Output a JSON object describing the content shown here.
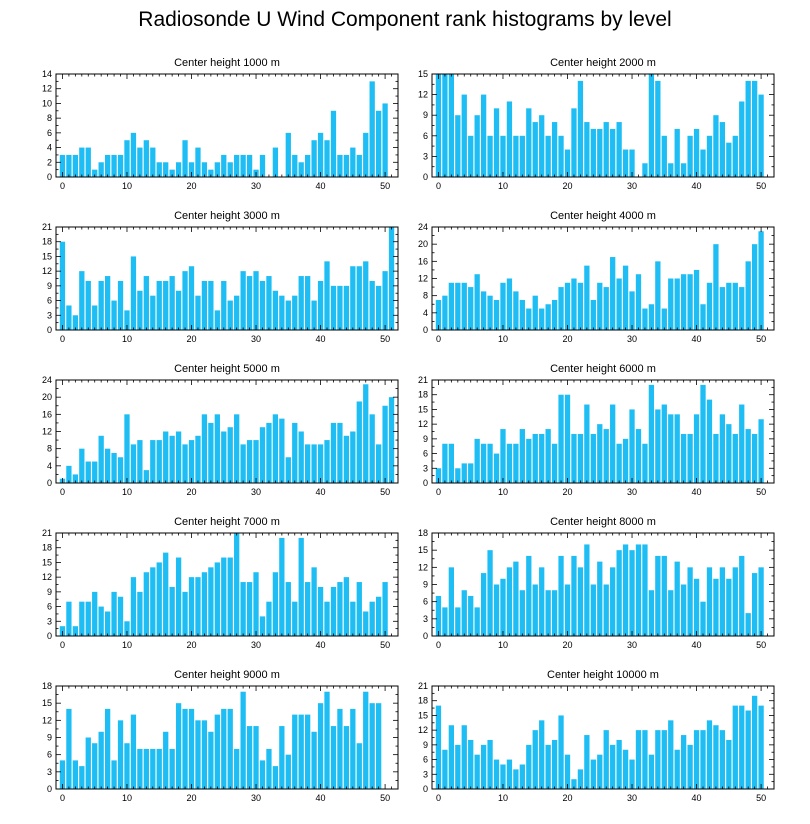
{
  "title": "Radiosonde U Wind Component rank histograms by level",
  "colors": {
    "bar": "#1EBEF5",
    "axis": "#000000",
    "background": "#ffffff"
  },
  "chart_data": [
    {
      "type": "bar",
      "title": "Center height 1000 m",
      "xlim": [
        -1,
        52
      ],
      "ylim": [
        0,
        14
      ],
      "xticks": [
        0,
        10,
        20,
        30,
        40,
        50
      ],
      "yticks": [
        0,
        2,
        4,
        6,
        8,
        10,
        12,
        14
      ],
      "x": [
        0,
        1,
        2,
        3,
        4,
        5,
        6,
        7,
        8,
        9,
        10,
        11,
        12,
        13,
        14,
        15,
        16,
        17,
        18,
        19,
        20,
        21,
        22,
        23,
        24,
        25,
        26,
        27,
        28,
        29,
        30,
        31,
        32,
        33,
        34,
        35,
        36,
        37,
        38,
        39,
        40,
        41,
        42,
        43,
        44,
        45,
        46,
        47,
        48,
        49,
        50,
        51
      ],
      "values": [
        3,
        3,
        3,
        4,
        4,
        1,
        2,
        3,
        3,
        3,
        5,
        6,
        4,
        5,
        4,
        2,
        2,
        1,
        2,
        5,
        2,
        4,
        2,
        1,
        2,
        3,
        2,
        3,
        3,
        3,
        1,
        3,
        0,
        4,
        0,
        6,
        3,
        2,
        3,
        5,
        6,
        5,
        9,
        3,
        3,
        4,
        3,
        6,
        13,
        9,
        10,
        0
      ]
    },
    {
      "type": "bar",
      "title": "Center height 2000 m",
      "xlim": [
        -1,
        52
      ],
      "ylim": [
        0,
        15
      ],
      "xticks": [
        0,
        10,
        20,
        30,
        40,
        50
      ],
      "yticks": [
        0,
        3,
        6,
        9,
        12,
        15
      ],
      "x": [
        0,
        1,
        2,
        3,
        4,
        5,
        6,
        7,
        8,
        9,
        10,
        11,
        12,
        13,
        14,
        15,
        16,
        17,
        18,
        19,
        20,
        21,
        22,
        23,
        24,
        25,
        26,
        27,
        28,
        29,
        30,
        31,
        32,
        33,
        34,
        35,
        36,
        37,
        38,
        39,
        40,
        41,
        42,
        43,
        44,
        45,
        46,
        47,
        48,
        49,
        50,
        51
      ],
      "values": [
        15,
        15,
        15,
        9,
        12,
        6,
        9,
        12,
        6,
        10,
        6,
        11,
        6,
        6,
        10,
        8,
        9,
        6,
        8,
        6,
        4,
        10,
        14,
        8,
        7,
        7,
        8,
        7,
        8,
        4,
        4,
        0,
        2,
        15,
        14,
        6,
        2,
        7,
        2,
        6,
        7,
        4,
        6,
        9,
        8,
        5,
        6,
        11,
        14,
        14,
        12,
        0
      ]
    },
    {
      "type": "bar",
      "title": "Center height 3000 m",
      "xlim": [
        -1,
        52
      ],
      "ylim": [
        0,
        21
      ],
      "xticks": [
        0,
        10,
        20,
        30,
        40,
        50
      ],
      "yticks": [
        0,
        3,
        6,
        9,
        12,
        15,
        18,
        21
      ],
      "x": [
        0,
        1,
        2,
        3,
        4,
        5,
        6,
        7,
        8,
        9,
        10,
        11,
        12,
        13,
        14,
        15,
        16,
        17,
        18,
        19,
        20,
        21,
        22,
        23,
        24,
        25,
        26,
        27,
        28,
        29,
        30,
        31,
        32,
        33,
        34,
        35,
        36,
        37,
        38,
        39,
        40,
        41,
        42,
        43,
        44,
        45,
        46,
        47,
        48,
        49,
        50,
        51
      ],
      "values": [
        18,
        5,
        3,
        12,
        10,
        5,
        10,
        11,
        6,
        10,
        4,
        15,
        8,
        11,
        7,
        10,
        10,
        11,
        8,
        12,
        13,
        7,
        10,
        10,
        4,
        10,
        6,
        7,
        12,
        11,
        12,
        10,
        11,
        8,
        7,
        6,
        7,
        11,
        11,
        6,
        10,
        14,
        9,
        9,
        9,
        13,
        13,
        14,
        10,
        9,
        12,
        21
      ]
    },
    {
      "type": "bar",
      "title": "Center height 4000 m",
      "xlim": [
        -1,
        52
      ],
      "ylim": [
        0,
        24
      ],
      "xticks": [
        0,
        10,
        20,
        30,
        40,
        50
      ],
      "yticks": [
        0,
        4,
        8,
        12,
        16,
        20,
        24
      ],
      "x": [
        0,
        1,
        2,
        3,
        4,
        5,
        6,
        7,
        8,
        9,
        10,
        11,
        12,
        13,
        14,
        15,
        16,
        17,
        18,
        19,
        20,
        21,
        22,
        23,
        24,
        25,
        26,
        27,
        28,
        29,
        30,
        31,
        32,
        33,
        34,
        35,
        36,
        37,
        38,
        39,
        40,
        41,
        42,
        43,
        44,
        45,
        46,
        47,
        48,
        49,
        50,
        51
      ],
      "values": [
        7,
        8,
        11,
        11,
        11,
        10,
        13,
        9,
        8,
        7,
        11,
        12,
        9,
        7,
        5,
        8,
        5,
        6,
        7,
        10,
        11,
        12,
        11,
        15,
        7,
        11,
        10,
        17,
        12,
        15,
        9,
        13,
        5,
        6,
        16,
        5,
        12,
        12,
        13,
        13,
        14,
        6,
        11,
        20,
        10,
        11,
        11,
        10,
        16,
        20,
        23,
        0
      ]
    },
    {
      "type": "bar",
      "title": "Center height 5000 m",
      "xlim": [
        -1,
        52
      ],
      "ylim": [
        0,
        24
      ],
      "xticks": [
        0,
        10,
        20,
        30,
        40,
        50
      ],
      "yticks": [
        0,
        4,
        8,
        12,
        16,
        20,
        24
      ],
      "x": [
        0,
        1,
        2,
        3,
        4,
        5,
        6,
        7,
        8,
        9,
        10,
        11,
        12,
        13,
        14,
        15,
        16,
        17,
        18,
        19,
        20,
        21,
        22,
        23,
        24,
        25,
        26,
        27,
        28,
        29,
        30,
        31,
        32,
        33,
        34,
        35,
        36,
        37,
        38,
        39,
        40,
        41,
        42,
        43,
        44,
        45,
        46,
        47,
        48,
        49,
        50,
        51
      ],
      "values": [
        1,
        4,
        2,
        8,
        5,
        5,
        11,
        8,
        7,
        6,
        16,
        9,
        10,
        3,
        10,
        10,
        12,
        11,
        12,
        9,
        10,
        11,
        16,
        14,
        16,
        12,
        13,
        16,
        9,
        10,
        10,
        13,
        14,
        16,
        15,
        6,
        14,
        12,
        9,
        9,
        9,
        10,
        14,
        14,
        11,
        12,
        19,
        23,
        16,
        9,
        18,
        20
      ]
    },
    {
      "type": "bar",
      "title": "Center height 6000 m",
      "xlim": [
        -1,
        52
      ],
      "ylim": [
        0,
        21
      ],
      "xticks": [
        0,
        10,
        20,
        30,
        40,
        50
      ],
      "yticks": [
        0,
        3,
        6,
        9,
        12,
        15,
        18,
        21
      ],
      "x": [
        0,
        1,
        2,
        3,
        4,
        5,
        6,
        7,
        8,
        9,
        10,
        11,
        12,
        13,
        14,
        15,
        16,
        17,
        18,
        19,
        20,
        21,
        22,
        23,
        24,
        25,
        26,
        27,
        28,
        29,
        30,
        31,
        32,
        33,
        34,
        35,
        36,
        37,
        38,
        39,
        40,
        41,
        42,
        43,
        44,
        45,
        46,
        47,
        48,
        49,
        50,
        51
      ],
      "values": [
        3,
        8,
        8,
        3,
        4,
        4,
        9,
        8,
        8,
        6,
        11,
        8,
        8,
        11,
        9,
        10,
        10,
        11,
        8,
        18,
        18,
        10,
        10,
        16,
        10,
        12,
        11,
        16,
        8,
        9,
        15,
        11,
        8,
        20,
        15,
        16,
        14,
        14,
        10,
        10,
        14,
        20,
        17,
        10,
        14,
        12,
        10,
        16,
        11,
        10,
        13,
        0
      ]
    },
    {
      "type": "bar",
      "title": "Center height 7000 m",
      "xlim": [
        -1,
        52
      ],
      "ylim": [
        0,
        21
      ],
      "xticks": [
        0,
        10,
        20,
        30,
        40,
        50
      ],
      "yticks": [
        0,
        3,
        6,
        9,
        12,
        15,
        18,
        21
      ],
      "x": [
        0,
        1,
        2,
        3,
        4,
        5,
        6,
        7,
        8,
        9,
        10,
        11,
        12,
        13,
        14,
        15,
        16,
        17,
        18,
        19,
        20,
        21,
        22,
        23,
        24,
        25,
        26,
        27,
        28,
        29,
        30,
        31,
        32,
        33,
        34,
        35,
        36,
        37,
        38,
        39,
        40,
        41,
        42,
        43,
        44,
        45,
        46,
        47,
        48,
        49,
        50,
        51
      ],
      "values": [
        2,
        7,
        2,
        7,
        7,
        9,
        6,
        5,
        9,
        8,
        3,
        12,
        9,
        13,
        14,
        15,
        17,
        10,
        16,
        9,
        12,
        12,
        13,
        14,
        15,
        16,
        16,
        21,
        11,
        11,
        13,
        4,
        7,
        13,
        20,
        11,
        7,
        20,
        11,
        14,
        10,
        7,
        10,
        11,
        12,
        7,
        11,
        5,
        7,
        8,
        11,
        0
      ]
    },
    {
      "type": "bar",
      "title": "Center height 8000 m",
      "xlim": [
        -1,
        52
      ],
      "ylim": [
        0,
        18
      ],
      "xticks": [
        0,
        10,
        20,
        30,
        40,
        50
      ],
      "yticks": [
        0,
        3,
        6,
        9,
        12,
        15,
        18
      ],
      "x": [
        0,
        1,
        2,
        3,
        4,
        5,
        6,
        7,
        8,
        9,
        10,
        11,
        12,
        13,
        14,
        15,
        16,
        17,
        18,
        19,
        20,
        21,
        22,
        23,
        24,
        25,
        26,
        27,
        28,
        29,
        30,
        31,
        32,
        33,
        34,
        35,
        36,
        37,
        38,
        39,
        40,
        41,
        42,
        43,
        44,
        45,
        46,
        47,
        48,
        49,
        50,
        51
      ],
      "values": [
        7,
        5,
        12,
        5,
        8,
        7,
        5,
        11,
        15,
        9,
        10,
        12,
        13,
        8,
        14,
        9,
        12,
        8,
        8,
        14,
        9,
        14,
        12,
        16,
        9,
        13,
        9,
        12,
        15,
        16,
        15,
        16,
        16,
        8,
        14,
        14,
        8,
        13,
        9,
        12,
        10,
        6,
        12,
        10,
        12,
        10,
        12,
        14,
        4,
        11,
        12,
        0
      ]
    },
    {
      "type": "bar",
      "title": "Center height 9000 m",
      "xlim": [
        -1,
        52
      ],
      "ylim": [
        0,
        18
      ],
      "xticks": [
        0,
        10,
        20,
        30,
        40,
        50
      ],
      "yticks": [
        0,
        3,
        6,
        9,
        12,
        15,
        18
      ],
      "x": [
        0,
        1,
        2,
        3,
        4,
        5,
        6,
        7,
        8,
        9,
        10,
        11,
        12,
        13,
        14,
        15,
        16,
        17,
        18,
        19,
        20,
        21,
        22,
        23,
        24,
        25,
        26,
        27,
        28,
        29,
        30,
        31,
        32,
        33,
        34,
        35,
        36,
        37,
        38,
        39,
        40,
        41,
        42,
        43,
        44,
        45,
        46,
        47,
        48,
        49,
        50,
        51
      ],
      "values": [
        5,
        14,
        5,
        4,
        9,
        8,
        10,
        14,
        5,
        12,
        8,
        13,
        7,
        7,
        7,
        7,
        10,
        7,
        15,
        14,
        14,
        12,
        12,
        10,
        13,
        14,
        14,
        7,
        17,
        11,
        11,
        5,
        7,
        4,
        11,
        6,
        13,
        13,
        13,
        10,
        15,
        17,
        11,
        14,
        11,
        14,
        8,
        17,
        15,
        15,
        0,
        0
      ]
    },
    {
      "type": "bar",
      "title": "Center height 10000 m",
      "xlim": [
        -1,
        52
      ],
      "ylim": [
        0,
        21
      ],
      "xticks": [
        0,
        10,
        20,
        30,
        40,
        50
      ],
      "yticks": [
        0,
        3,
        6,
        9,
        12,
        15,
        18,
        21
      ],
      "x": [
        0,
        1,
        2,
        3,
        4,
        5,
        6,
        7,
        8,
        9,
        10,
        11,
        12,
        13,
        14,
        15,
        16,
        17,
        18,
        19,
        20,
        21,
        22,
        23,
        24,
        25,
        26,
        27,
        28,
        29,
        30,
        31,
        32,
        33,
        34,
        35,
        36,
        37,
        38,
        39,
        40,
        41,
        42,
        43,
        44,
        45,
        46,
        47,
        48,
        49,
        50,
        51
      ],
      "values": [
        17,
        8,
        13,
        9,
        13,
        10,
        7,
        9,
        10,
        6,
        5,
        6,
        4,
        5,
        9,
        12,
        14,
        9,
        10,
        15,
        7,
        2,
        4,
        11,
        6,
        7,
        12,
        9,
        10,
        8,
        6,
        12,
        12,
        7,
        12,
        12,
        14,
        8,
        11,
        9,
        12,
        12,
        14,
        13,
        12,
        10,
        17,
        17,
        16,
        19,
        17,
        0
      ]
    }
  ]
}
